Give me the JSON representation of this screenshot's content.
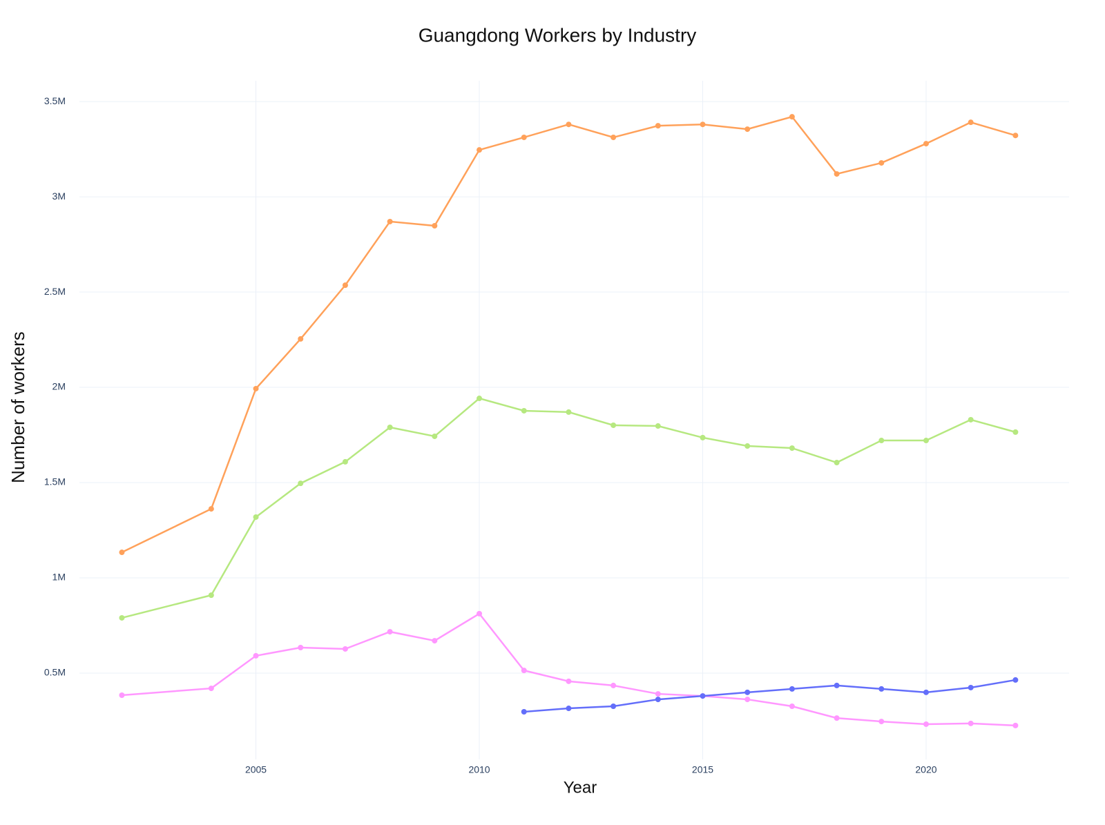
{
  "chart_data": {
    "type": "line",
    "title": "Guangdong Workers by Industry",
    "x_label": "Year",
    "y_label": "Number of workers",
    "x": [
      2002,
      2004,
      2005,
      2006,
      2007,
      2008,
      2009,
      2010,
      2011,
      2012,
      2013,
      2014,
      2015,
      2016,
      2017,
      2018,
      2019,
      2020,
      2021,
      2022
    ],
    "series": [
      {
        "color": "#FFA15A",
        "values": [
          1134000,
          1362000,
          1993000,
          2254000,
          2536000,
          2870000,
          2848000,
          3246000,
          3312000,
          3380000,
          3312000,
          3373000,
          3380000,
          3355000,
          3420000,
          3120000,
          3178000,
          3279000,
          3391000,
          3322000
        ]
      },
      {
        "color": "#B6E880",
        "values": [
          790000,
          909000,
          1319000,
          1496000,
          1609000,
          1790000,
          1743000,
          1942000,
          1877000,
          1870000,
          1801000,
          1797000,
          1736000,
          1692000,
          1681000,
          1605000,
          1721000,
          1721000,
          1830000,
          1765000
        ]
      },
      {
        "color": "#FF97FF",
        "values": [
          384000,
          420000,
          591000,
          634000,
          627000,
          717000,
          670000,
          812000,
          514000,
          457000,
          435000,
          391000,
          380000,
          362000,
          326000,
          264000,
          246000,
          232000,
          236000,
          225000
        ]
      },
      {
        "color": "#636EFA",
        "values": [
          null,
          null,
          null,
          null,
          null,
          null,
          null,
          null,
          297000,
          315000,
          326000,
          362000,
          380000,
          399000,
          417000,
          435000,
          417000,
          399000,
          424000,
          464000
        ]
      }
    ],
    "xlim": [
      2001.05,
      2023.2
    ],
    "xticks": [
      2005,
      2010,
      2015,
      2020
    ],
    "ylim": [
      47000,
      3609000
    ],
    "yticks": [
      {
        "value": 500000,
        "label": "0.5M"
      },
      {
        "value": 1000000,
        "label": "1M"
      },
      {
        "value": 1500000,
        "label": "1.5M"
      },
      {
        "value": 2000000,
        "label": "2M"
      },
      {
        "value": 2500000,
        "label": "2.5M"
      },
      {
        "value": 3000000,
        "label": "3M"
      },
      {
        "value": 3500000,
        "label": "3.5M"
      }
    ],
    "grid": true
  }
}
